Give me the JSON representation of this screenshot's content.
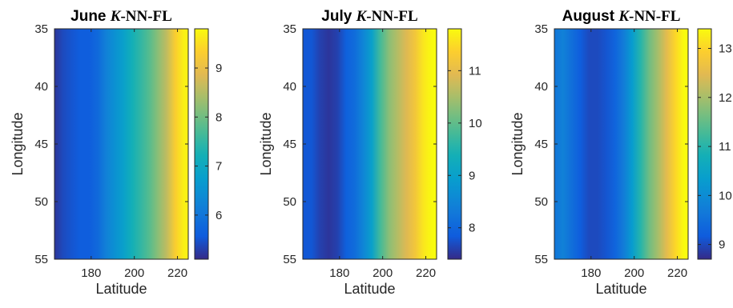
{
  "chart_data": [
    {
      "type": "heatmap",
      "title": {
        "prefix": "June",
        "k": "K",
        "method": "-NN-FL"
      },
      "xlabel": "Latitude",
      "ylabel": "Longitude",
      "xlim": [
        163,
        225
      ],
      "ylim": [
        35,
        55
      ],
      "xticks": [
        "180",
        "200",
        "220"
      ],
      "xtick_values": [
        180,
        200,
        220
      ],
      "yticks": [
        "35",
        "40",
        "45",
        "50",
        "55"
      ],
      "ytick_values": [
        35,
        40,
        45,
        50,
        55
      ],
      "colorbar": {
        "range": [
          5.1,
          9.8
        ],
        "ticks": [
          "6",
          "7",
          "8",
          "9"
        ],
        "tick_values": [
          6,
          7,
          8,
          9
        ]
      },
      "columns_latitude": [
        163,
        167,
        171,
        175,
        179,
        183,
        187,
        191,
        195,
        199,
        203,
        207,
        211,
        215,
        219,
        223
      ],
      "column_values": [
        5.2,
        5.4,
        5.5,
        5.6,
        5.6,
        5.8,
        6.2,
        6.5,
        6.8,
        7.2,
        7.5,
        7.8,
        8.2,
        8.6,
        9.3,
        9.7
      ]
    },
    {
      "type": "heatmap",
      "title": {
        "prefix": "July",
        "k": "K",
        "method": "-NN-FL"
      },
      "xlabel": "Latitude",
      "ylabel": "Longitude",
      "xlim": [
        163,
        225
      ],
      "ylim": [
        35,
        55
      ],
      "xticks": [
        "180",
        "200",
        "220"
      ],
      "xtick_values": [
        180,
        200,
        220
      ],
      "yticks": [
        "35",
        "40",
        "45",
        "50",
        "55"
      ],
      "ytick_values": [
        35,
        40,
        45,
        50,
        55
      ],
      "colorbar": {
        "range": [
          7.4,
          11.8
        ],
        "ticks": [
          "8",
          "9",
          "10",
          "11"
        ],
        "tick_values": [
          8,
          9,
          10,
          11
        ]
      },
      "columns_latitude": [
        163,
        167,
        171,
        175,
        179,
        183,
        187,
        191,
        195,
        199,
        203,
        207,
        211,
        215,
        219,
        223
      ],
      "column_values": [
        7.8,
        7.8,
        7.6,
        7.5,
        7.6,
        7.9,
        8.1,
        8.5,
        9.0,
        9.8,
        10.3,
        10.6,
        10.9,
        11.2,
        11.6,
        11.8
      ]
    },
    {
      "type": "heatmap",
      "title": {
        "prefix": "August",
        "k": "K",
        "method": "-NN-FL"
      },
      "xlabel": "Latitude",
      "ylabel": "Longitude",
      "xlim": [
        163,
        225
      ],
      "ylim": [
        35,
        55
      ],
      "xticks": [
        "180",
        "200",
        "220"
      ],
      "xtick_values": [
        180,
        200,
        220
      ],
      "yticks": [
        "35",
        "40",
        "45",
        "50",
        "55"
      ],
      "ytick_values": [
        35,
        40,
        45,
        50,
        55
      ],
      "colorbar": {
        "range": [
          8.7,
          13.4
        ],
        "ticks": [
          "9",
          "10",
          "11",
          "12",
          "13"
        ],
        "tick_values": [
          9,
          10,
          11,
          12,
          13
        ]
      },
      "columns_latitude": [
        163,
        167,
        171,
        175,
        179,
        183,
        187,
        191,
        195,
        199,
        203,
        207,
        211,
        215,
        219,
        223
      ],
      "column_values": [
        9.6,
        9.8,
        9.5,
        9.2,
        9.0,
        9.0,
        9.1,
        9.3,
        9.7,
        10.3,
        11.0,
        11.6,
        12.0,
        12.5,
        13.0,
        13.4
      ]
    }
  ]
}
